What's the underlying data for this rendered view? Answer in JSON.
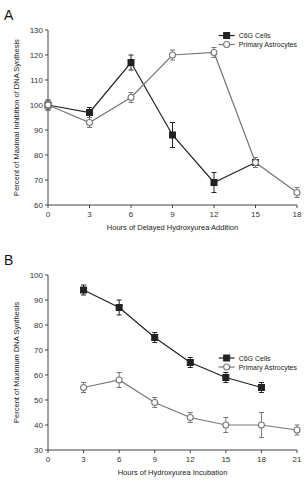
{
  "chart_data": [
    {
      "type": "line",
      "title": "A",
      "x_label": "Hours of Delayed Hydroxyurea Addition",
      "y_label": "Percent of Maximal Inhibition of DNA Synthesis",
      "xlim": [
        0,
        18
      ],
      "xticks": [
        0,
        3,
        6,
        9,
        12,
        15,
        18
      ],
      "ylim": [
        60,
        130
      ],
      "yticks": [
        60,
        70,
        80,
        90,
        100,
        110,
        120,
        130
      ],
      "grid": false,
      "legend": "upper right",
      "series": [
        {
          "name": "C6G Cells",
          "color": "#222222",
          "marker": "square",
          "x": [
            0,
            3,
            6,
            9,
            12,
            15
          ],
          "values": [
            100,
            97,
            117,
            88,
            69,
            77
          ],
          "errors": [
            2,
            2,
            3,
            5,
            4,
            2
          ]
        },
        {
          "name": "Primary Astrocytes",
          "color": "#777777",
          "marker": "circle",
          "x": [
            0,
            3,
            6,
            9,
            12,
            15,
            18
          ],
          "values": [
            100,
            93,
            103,
            120,
            121,
            77,
            65
          ],
          "errors": [
            2,
            2,
            2,
            2,
            2,
            2,
            2
          ]
        }
      ]
    },
    {
      "type": "line",
      "title": "B",
      "x_label": "Hours of Hydroxyurea Incubation",
      "y_label": "Percent of Maximum DNA Synthesis",
      "xlim": [
        0,
        21
      ],
      "xticks": [
        0,
        3,
        6,
        9,
        12,
        15,
        18,
        21
      ],
      "ylim": [
        30,
        100
      ],
      "yticks": [
        30,
        40,
        50,
        60,
        70,
        80,
        90,
        100
      ],
      "grid": false,
      "legend": "center right",
      "series": [
        {
          "name": "C6G Cells",
          "color": "#222222",
          "marker": "square",
          "x": [
            3,
            6,
            9,
            12,
            15,
            18
          ],
          "values": [
            94,
            87,
            75,
            65,
            59,
            55
          ],
          "errors": [
            2,
            3,
            2,
            2,
            2,
            2
          ]
        },
        {
          "name": "Primary Astrocytes",
          "color": "#777777",
          "marker": "circle",
          "x": [
            3,
            6,
            9,
            12,
            15,
            18,
            21
          ],
          "values": [
            55,
            58,
            49,
            43,
            40,
            40,
            38
          ],
          "errors": [
            2,
            3,
            2,
            2,
            3,
            5,
            2
          ]
        }
      ]
    }
  ]
}
